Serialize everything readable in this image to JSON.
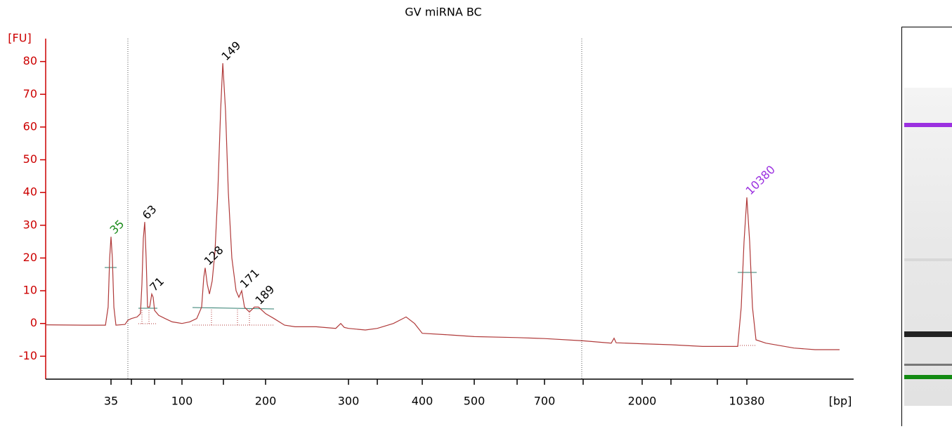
{
  "chart_data": {
    "type": "line",
    "title": "GV miRNA BC",
    "ylabel": "[FU]",
    "xlabel": "[bp]",
    "color": "#b03a3a",
    "axis_color": "#cc0000",
    "ylim": [
      -17,
      87
    ],
    "yticks": [
      -10,
      0,
      10,
      20,
      30,
      40,
      50,
      60,
      70,
      80
    ],
    "xlim": [
      -13,
      21000
    ],
    "xticks": [
      35,
      100,
      200,
      300,
      400,
      500,
      700,
      2000,
      10380
    ],
    "xminorticks": [
      50,
      75,
      150,
      350,
      600,
      1000,
      4000,
      7000
    ],
    "x": [
      -13,
      15.3,
      30.9,
      32.9,
      34,
      35,
      36,
      37.1,
      38.6,
      45.3,
      47.4,
      50,
      56.1,
      59.8,
      61.4,
      62.9,
      64.4,
      65.9,
      67.4,
      69.7,
      72,
      73.5,
      75,
      78.8,
      84.6,
      91,
      100,
      109.3,
      117.8,
      123.7,
      126.3,
      128,
      130.5,
      133.1,
      136.4,
      139.8,
      143.2,
      146.6,
      149.2,
      152.5,
      155.8,
      160,
      165,
      168.3,
      171.7,
      175,
      180.8,
      186.7,
      191.7,
      200,
      210.2,
      222.9,
      235.6,
      261,
      284.7,
      290.7,
      294.9,
      300,
      329.3,
      350,
      368,
      382,
      391.4,
      400,
      452.7,
      500,
      600,
      700,
      1000,
      1476,
      1524,
      1560,
      2000,
      4000,
      6045,
      7000,
      9334,
      9736,
      10058,
      10380,
      10702,
      11024,
      11426,
      12553,
      15772,
      18187,
      21000
    ],
    "values": [
      -0.4,
      -0.5,
      -0.5,
      5,
      20,
      26.5,
      20,
      5,
      -0.5,
      -0.3,
      1,
      1.5,
      2,
      3,
      12,
      26,
      31,
      20,
      5,
      5,
      9,
      8,
      4,
      2.5,
      1.5,
      0.5,
      0,
      0.5,
      1.5,
      5,
      14,
      17,
      12,
      9,
      13,
      22,
      40,
      65,
      79.5,
      65,
      40,
      20,
      10,
      8,
      10,
      5,
      3.5,
      5,
      5,
      3,
      1.5,
      -0.5,
      -1,
      -1,
      -1.5,
      0,
      -1.2,
      -1.5,
      -2,
      -1.5,
      0,
      2,
      0,
      -3,
      -3.5,
      -4,
      -4.3,
      -4.6,
      -5.3,
      -6,
      -4.5,
      -5.9,
      -6.2,
      -6.5,
      -7,
      -7,
      -7,
      5,
      25,
      38.5,
      25,
      5,
      -5,
      -6,
      -7.5,
      -8,
      -8
    ],
    "peaks": [
      {
        "size": 35,
        "height": 26.5,
        "color": "#1a8a1a"
      },
      {
        "size": 63,
        "height": 31,
        "color": "#000000"
      },
      {
        "size": 71,
        "height": 9,
        "color": "#000000"
      },
      {
        "size": 128,
        "height": 17,
        "color": "#000000"
      },
      {
        "size": 149,
        "height": 79.5,
        "color": "#000000"
      },
      {
        "size": 171,
        "height": 10,
        "color": "#000000"
      },
      {
        "size": 189,
        "height": 5,
        "color": "#000000"
      },
      {
        "size": 10380,
        "height": 38.5,
        "color": "#9b30e0"
      }
    ]
  }
}
